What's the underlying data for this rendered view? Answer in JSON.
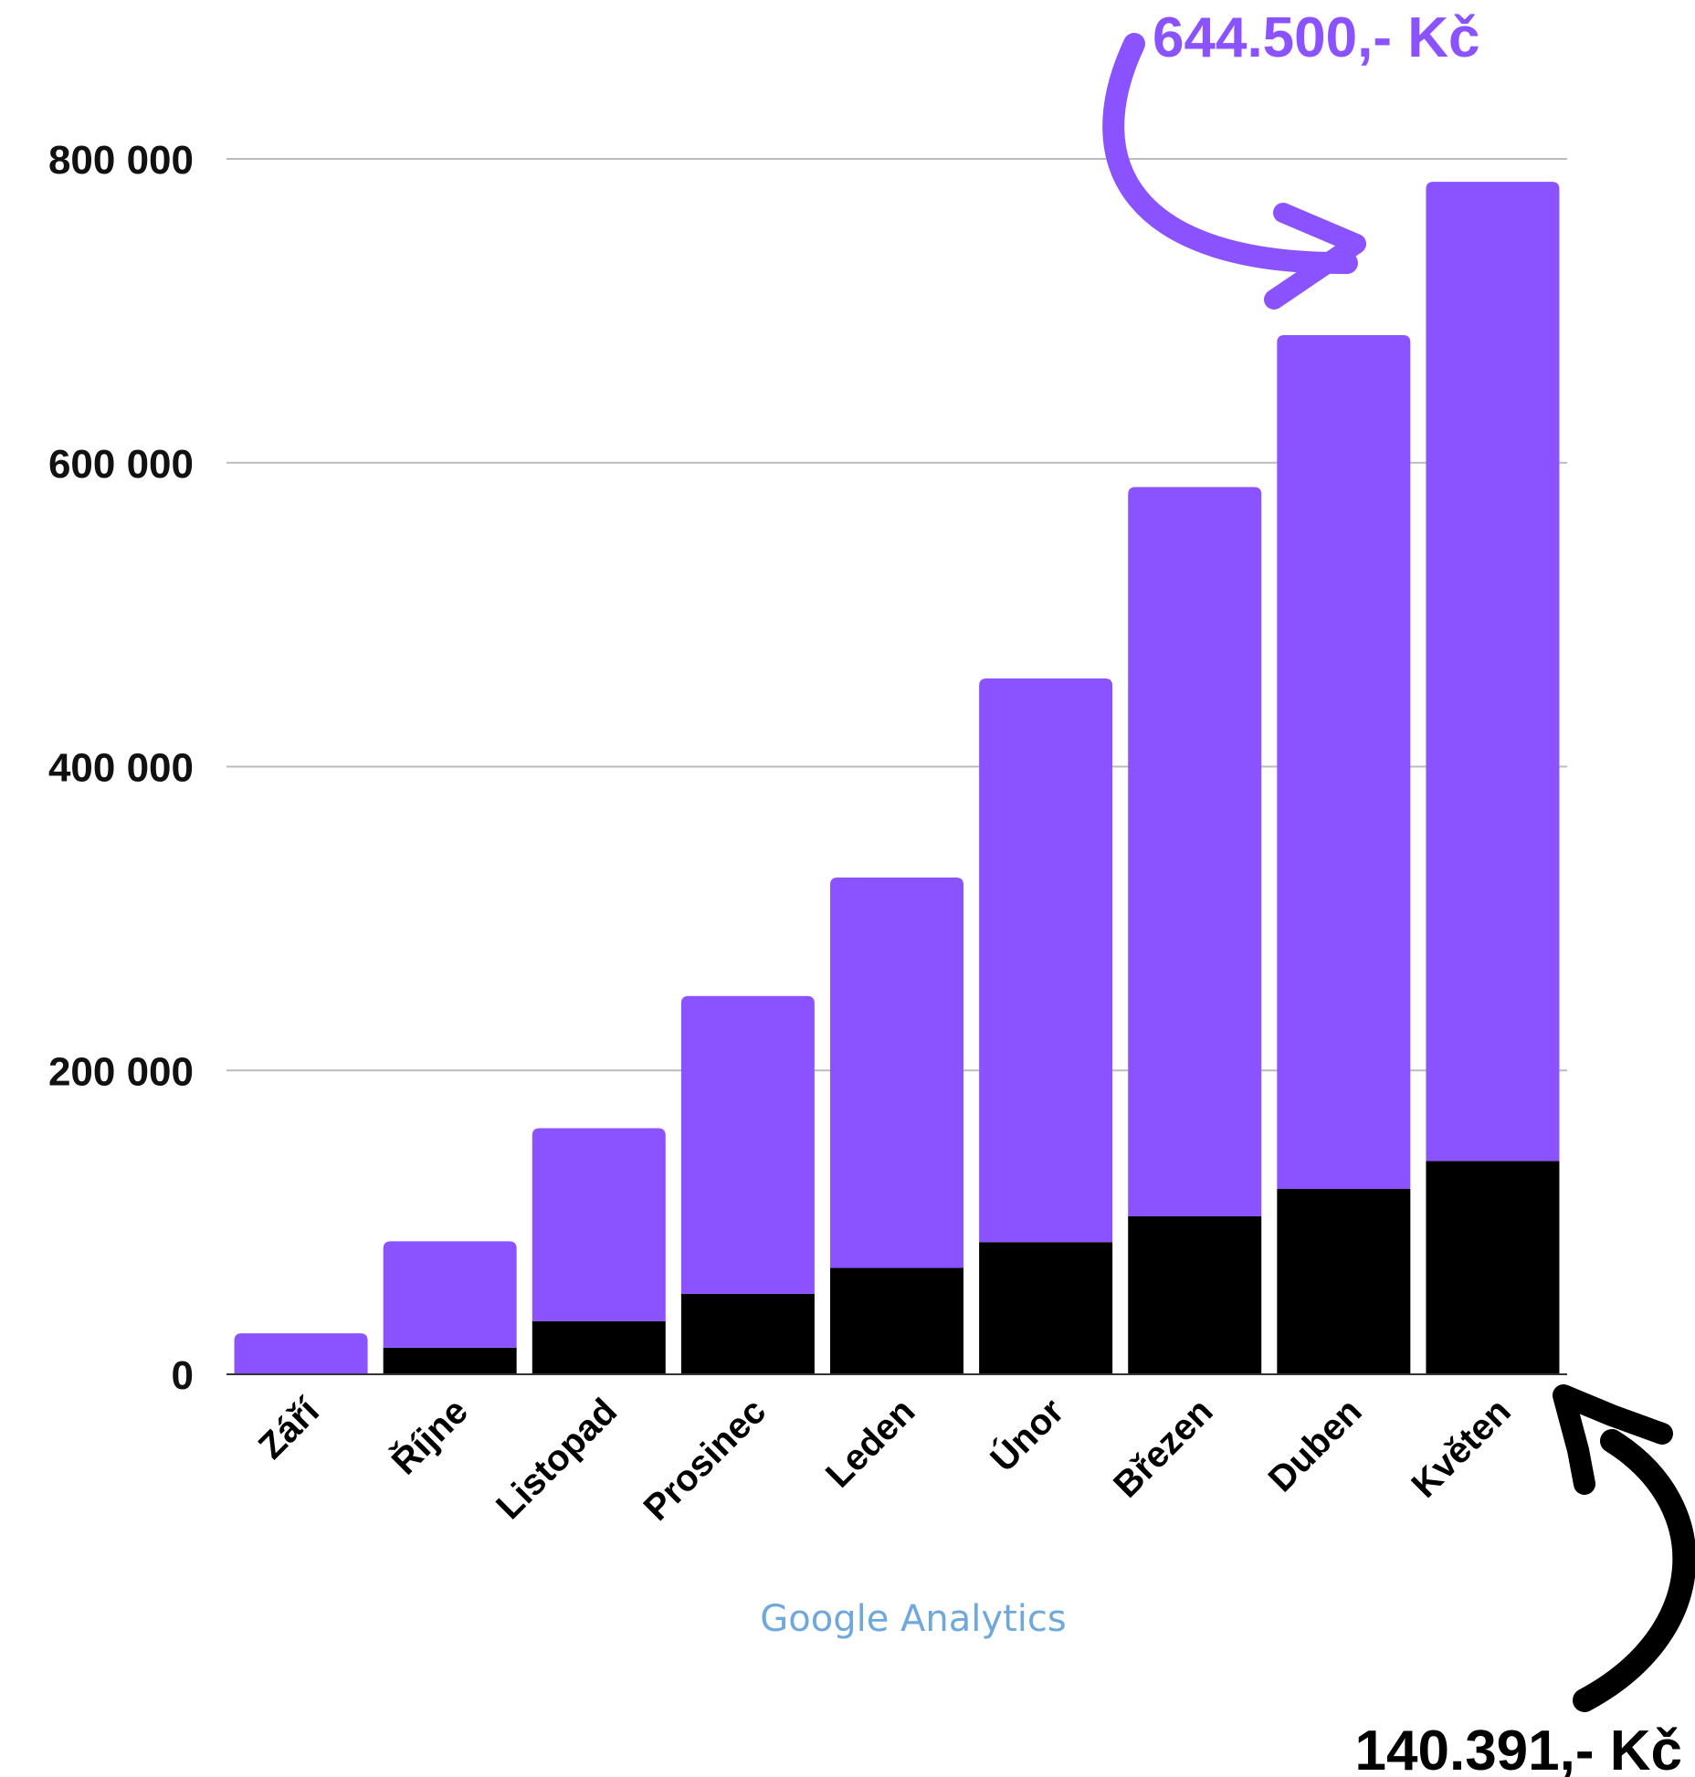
{
  "chart_data": {
    "type": "bar",
    "stacked": true,
    "categories": [
      "Září",
      "Říjne",
      "Listopad",
      "Prosinec",
      "Leden",
      "Únor",
      "Březen",
      "Duben",
      "Květen"
    ],
    "series": [
      {
        "color": "#000000",
        "values": [
          0,
          17500,
          35000,
          53000,
          70000,
          87000,
          104000,
          122000,
          140391
        ]
      },
      {
        "color": "#8b52ff",
        "values": [
          27000,
          70000,
          127000,
          196000,
          257000,
          371000,
          480000,
          562000,
          644500
        ]
      }
    ],
    "ylim": [
      0,
      800000
    ],
    "yticks": [
      "0",
      "200 000",
      "400 000",
      "600 000",
      "800 000"
    ],
    "ytick_values": [
      0,
      200000,
      400000,
      600000,
      800000
    ],
    "grid": true,
    "legend": "none"
  },
  "annotations": {
    "top_callout": "644.500,- Kč",
    "bottom_callout": "140.391,- Kč",
    "source": "Google Analytics",
    "top_color": "#8b52ff",
    "bottom_color": "#000000",
    "source_color": "#6fa8dc"
  }
}
